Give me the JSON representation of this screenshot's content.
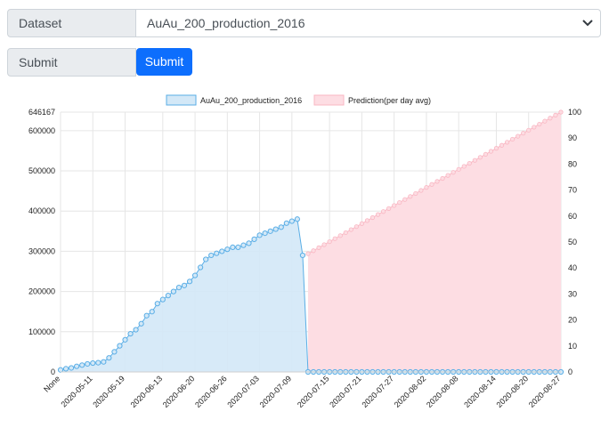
{
  "form": {
    "dataset_label": "Dataset",
    "dataset_value": "AuAu_200_production_2016",
    "submit_label": "Submit",
    "submit_button": "Submit"
  },
  "colors": {
    "series_line": "#5aaee6",
    "series_fill": "#d3e8f7",
    "prediction_fill": "#fddde3",
    "prediction_line": "#f9b7c3",
    "button": "#0d6efd"
  },
  "chart_data": {
    "type": "line",
    "legend": [
      "AuAu_200_production_2016",
      "Prediction(per day avg)"
    ],
    "legend_position": "top-center",
    "grid": true,
    "x_labels": [
      "None",
      "2020-05-11",
      "2020-05-19",
      "2020-06-13",
      "2020-06-20",
      "2020-06-26",
      "2020-07-03",
      "2020-07-09",
      "2020-07-15",
      "2020-07-21",
      "2020-07-27",
      "2020-08-02",
      "2020-08-08",
      "2020-08-14",
      "2020-08-20",
      "2020-08-27"
    ],
    "n_points": 94,
    "y_left": {
      "ticks": [
        0,
        100000,
        200000,
        300000,
        400000,
        500000,
        600000,
        646167
      ],
      "max": 646167
    },
    "y_right": {
      "ticks": [
        0,
        10,
        20,
        30,
        40,
        50,
        60,
        70,
        80,
        90,
        100
      ],
      "max": 100
    },
    "series": [
      {
        "name": "AuAu_200_production_2016",
        "axis": "left",
        "values": [
          5000,
          8000,
          10000,
          14000,
          17000,
          20000,
          22000,
          23000,
          25000,
          35000,
          50000,
          65000,
          80000,
          95000,
          105000,
          120000,
          140000,
          150000,
          170000,
          180000,
          190000,
          200000,
          210000,
          215000,
          225000,
          240000,
          260000,
          280000,
          290000,
          295000,
          300000,
          305000,
          310000,
          310000,
          315000,
          320000,
          330000,
          340000,
          345000,
          350000,
          355000,
          360000,
          370000,
          375000,
          380000,
          290000,
          0,
          0,
          0,
          0,
          0,
          0,
          0,
          0,
          0,
          0,
          0,
          0,
          0,
          0,
          0,
          0,
          0,
          0,
          0,
          0,
          0,
          0,
          0,
          0,
          0,
          0,
          0,
          0,
          0,
          0,
          0,
          0,
          0,
          0,
          0,
          0,
          0,
          0,
          0,
          0,
          0,
          0,
          0,
          0,
          0,
          0,
          0,
          0
        ]
      },
      {
        "name": "Prediction(per day avg)",
        "axis": "right",
        "start_index": 46,
        "start_value": 45.5,
        "end_value": 100
      }
    ]
  }
}
